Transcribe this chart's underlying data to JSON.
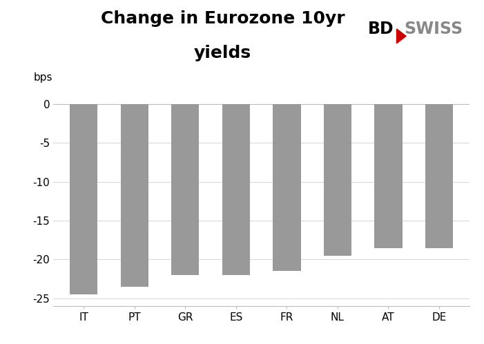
{
  "categories": [
    "IT",
    "PT",
    "GR",
    "ES",
    "FR",
    "NL",
    "AT",
    "DE"
  ],
  "values": [
    -24.5,
    -23.5,
    -22.0,
    -22.0,
    -21.5,
    -19.5,
    -18.5,
    -18.5
  ],
  "bar_color": "#999999",
  "title_line1": "Change in Eurozone 10yr",
  "title_line2": "yields",
  "ylabel": "bps",
  "ylim": [
    -26,
    1
  ],
  "yticks": [
    0,
    -5,
    -10,
    -15,
    -20,
    -25
  ],
  "background_color": "#ffffff",
  "title_fontsize": 18,
  "label_fontsize": 11,
  "tick_fontsize": 11,
  "bar_width": 0.55,
  "bd_color": "#000000",
  "swiss_color": "#888888",
  "triangle_color": "#cc0000"
}
